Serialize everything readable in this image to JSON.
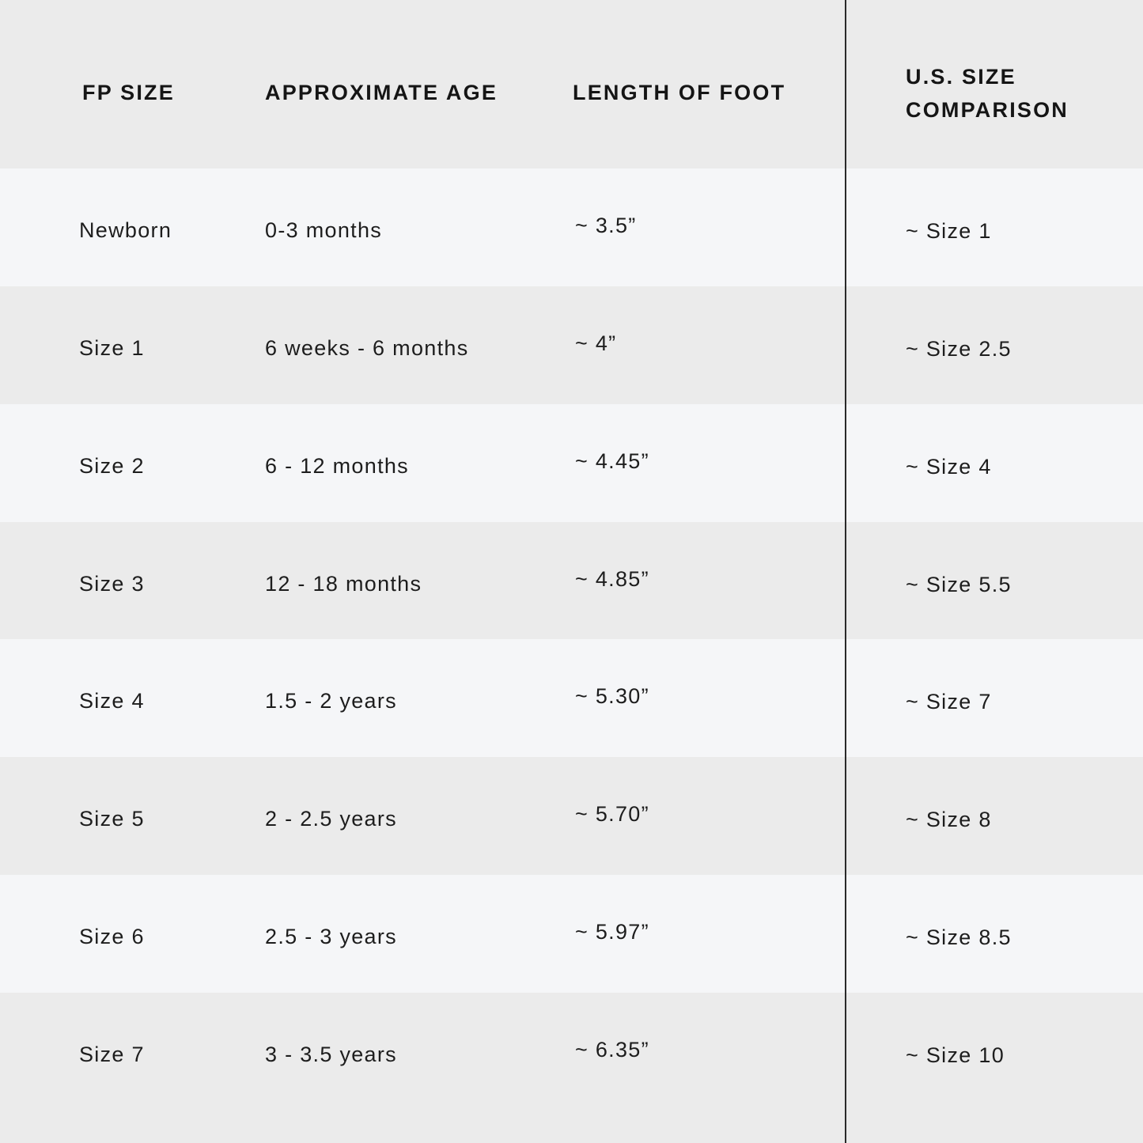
{
  "table": {
    "headers": [
      "FP SIZE",
      "APPROXIMATE AGE",
      "LENGTH OF FOOT",
      "U.S. SIZE",
      "COMPARISON"
    ],
    "rows": [
      [
        "Newborn",
        "0-3 months",
        "~ 3.5”",
        "~ Size 1"
      ],
      [
        "Size 1",
        "6 weeks - 6 months",
        "~ 4”",
        "~ Size 2.5"
      ],
      [
        "Size 2",
        "6 - 12 months",
        "~ 4.45”",
        "~ Size 4"
      ],
      [
        "Size 3",
        "12 - 18 months",
        "~ 4.85”",
        "~ Size 5.5"
      ],
      [
        "Size 4",
        "1.5 - 2 years",
        "~ 5.30”",
        "~ Size 7"
      ],
      [
        "Size 5",
        "2 - 2.5 years",
        "~ 5.70”",
        "~ Size 8"
      ],
      [
        "Size 6",
        "2.5 - 3 years",
        "~ 5.97”",
        "~ Size 8.5"
      ],
      [
        "Size 7",
        "3 - 3.5 years",
        "~ 6.35”",
        "~ Size 10"
      ]
    ]
  },
  "colors": {
    "header_bg": "#ebebeb",
    "row_light": "#f5f6f8",
    "row_dark": "#ebebeb",
    "divider": "#2a2a2a"
  }
}
